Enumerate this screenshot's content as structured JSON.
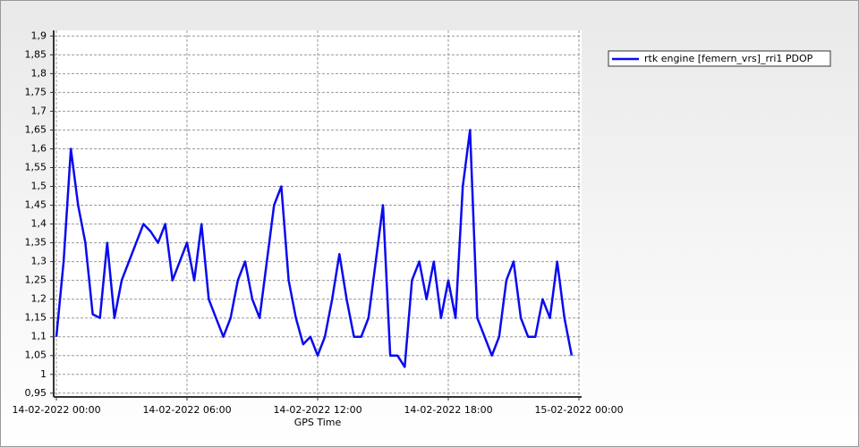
{
  "chart_data": {
    "type": "line",
    "x_label": "GPS Time",
    "x": [
      "14-02-2022 00:00",
      "14-02-2022 00:20",
      "14-02-2022 00:40",
      "14-02-2022 01:00",
      "14-02-2022 01:20",
      "14-02-2022 01:40",
      "14-02-2022 02:00",
      "14-02-2022 02:20",
      "14-02-2022 02:40",
      "14-02-2022 03:00",
      "14-02-2022 03:20",
      "14-02-2022 03:40",
      "14-02-2022 04:00",
      "14-02-2022 04:20",
      "14-02-2022 04:40",
      "14-02-2022 05:00",
      "14-02-2022 05:20",
      "14-02-2022 05:40",
      "14-02-2022 06:00",
      "14-02-2022 06:20",
      "14-02-2022 06:40",
      "14-02-2022 07:00",
      "14-02-2022 07:20",
      "14-02-2022 07:40",
      "14-02-2022 08:00",
      "14-02-2022 08:20",
      "14-02-2022 08:40",
      "14-02-2022 09:00",
      "14-02-2022 09:20",
      "14-02-2022 09:40",
      "14-02-2022 10:00",
      "14-02-2022 10:20",
      "14-02-2022 10:40",
      "14-02-2022 11:00",
      "14-02-2022 11:20",
      "14-02-2022 11:40",
      "14-02-2022 12:00",
      "14-02-2022 12:20",
      "14-02-2022 12:40",
      "14-02-2022 13:00",
      "14-02-2022 13:20",
      "14-02-2022 13:40",
      "14-02-2022 14:00",
      "14-02-2022 14:20",
      "14-02-2022 14:40",
      "14-02-2022 15:00",
      "14-02-2022 15:20",
      "14-02-2022 15:40",
      "14-02-2022 16:00",
      "14-02-2022 16:20",
      "14-02-2022 16:40",
      "14-02-2022 17:00",
      "14-02-2022 17:20",
      "14-02-2022 17:40",
      "14-02-2022 18:00",
      "14-02-2022 18:20",
      "14-02-2022 18:40",
      "14-02-2022 19:00",
      "14-02-2022 19:20",
      "14-02-2022 19:40",
      "14-02-2022 20:00",
      "14-02-2022 20:20",
      "14-02-2022 20:40",
      "14-02-2022 21:00",
      "14-02-2022 21:20",
      "14-02-2022 21:40",
      "14-02-2022 22:00",
      "14-02-2022 22:20",
      "14-02-2022 22:40",
      "14-02-2022 23:00",
      "14-02-2022 23:20",
      "14-02-2022 23:40"
    ],
    "series": [
      {
        "name": "rtk engine [femern_vrs]_rri1 PDOP",
        "color": "#0a0af0",
        "values": [
          1.1,
          1.3,
          1.6,
          1.45,
          1.35,
          1.16,
          1.15,
          1.35,
          1.15,
          1.25,
          1.3,
          1.35,
          1.4,
          1.38,
          1.35,
          1.4,
          1.25,
          1.3,
          1.35,
          1.25,
          1.4,
          1.2,
          1.15,
          1.1,
          1.15,
          1.25,
          1.3,
          1.2,
          1.15,
          1.3,
          1.45,
          1.5,
          1.25,
          1.15,
          1.08,
          1.1,
          1.05,
          1.1,
          1.2,
          1.32,
          1.2,
          1.1,
          1.1,
          1.15,
          1.3,
          1.45,
          1.05,
          1.05,
          1.02,
          1.25,
          1.3,
          1.2,
          1.3,
          1.15,
          1.25,
          1.15,
          1.5,
          1.65,
          1.15,
          1.1,
          1.05,
          1.1,
          1.25,
          1.3,
          1.15,
          1.1,
          1.1,
          1.2,
          1.15,
          1.3,
          1.15,
          1.05
        ]
      }
    ],
    "xlim": [
      "14-02-2022 00:00",
      "15-02-2022 00:00"
    ],
    "xticks": [
      "14-02-2022 00:00",
      "14-02-2022 06:00",
      "14-02-2022 12:00",
      "14-02-2022 18:00",
      "15-02-2022 00:00"
    ],
    "ylim": [
      0.94,
      1.915
    ],
    "yticks": [
      {
        "value": 0.95,
        "label": "0,95"
      },
      1,
      {
        "value": 1.05,
        "label": "1,05"
      },
      {
        "value": 1.1,
        "label": "1,1"
      },
      {
        "value": 1.15,
        "label": "1,15"
      },
      {
        "value": 1.2,
        "label": "1,2"
      },
      {
        "value": 1.25,
        "label": "1,25"
      },
      {
        "value": 1.3,
        "label": "1,3"
      },
      {
        "value": 1.35,
        "label": "1,35"
      },
      {
        "value": 1.4,
        "label": "1,4"
      },
      {
        "value": 1.45,
        "label": "1,45"
      },
      {
        "value": 1.5,
        "label": "1,5"
      },
      {
        "value": 1.55,
        "label": "1,55"
      },
      {
        "value": 1.6,
        "label": "1,6"
      },
      {
        "value": 1.65,
        "label": "1,65"
      },
      {
        "value": 1.7,
        "label": "1,7"
      },
      {
        "value": 1.75,
        "label": "1,75"
      },
      {
        "value": 1.8,
        "label": "1,8"
      },
      {
        "value": 1.85,
        "label": "1,85"
      },
      {
        "value": 1.9,
        "label": "1,9"
      }
    ],
    "grid": true
  }
}
